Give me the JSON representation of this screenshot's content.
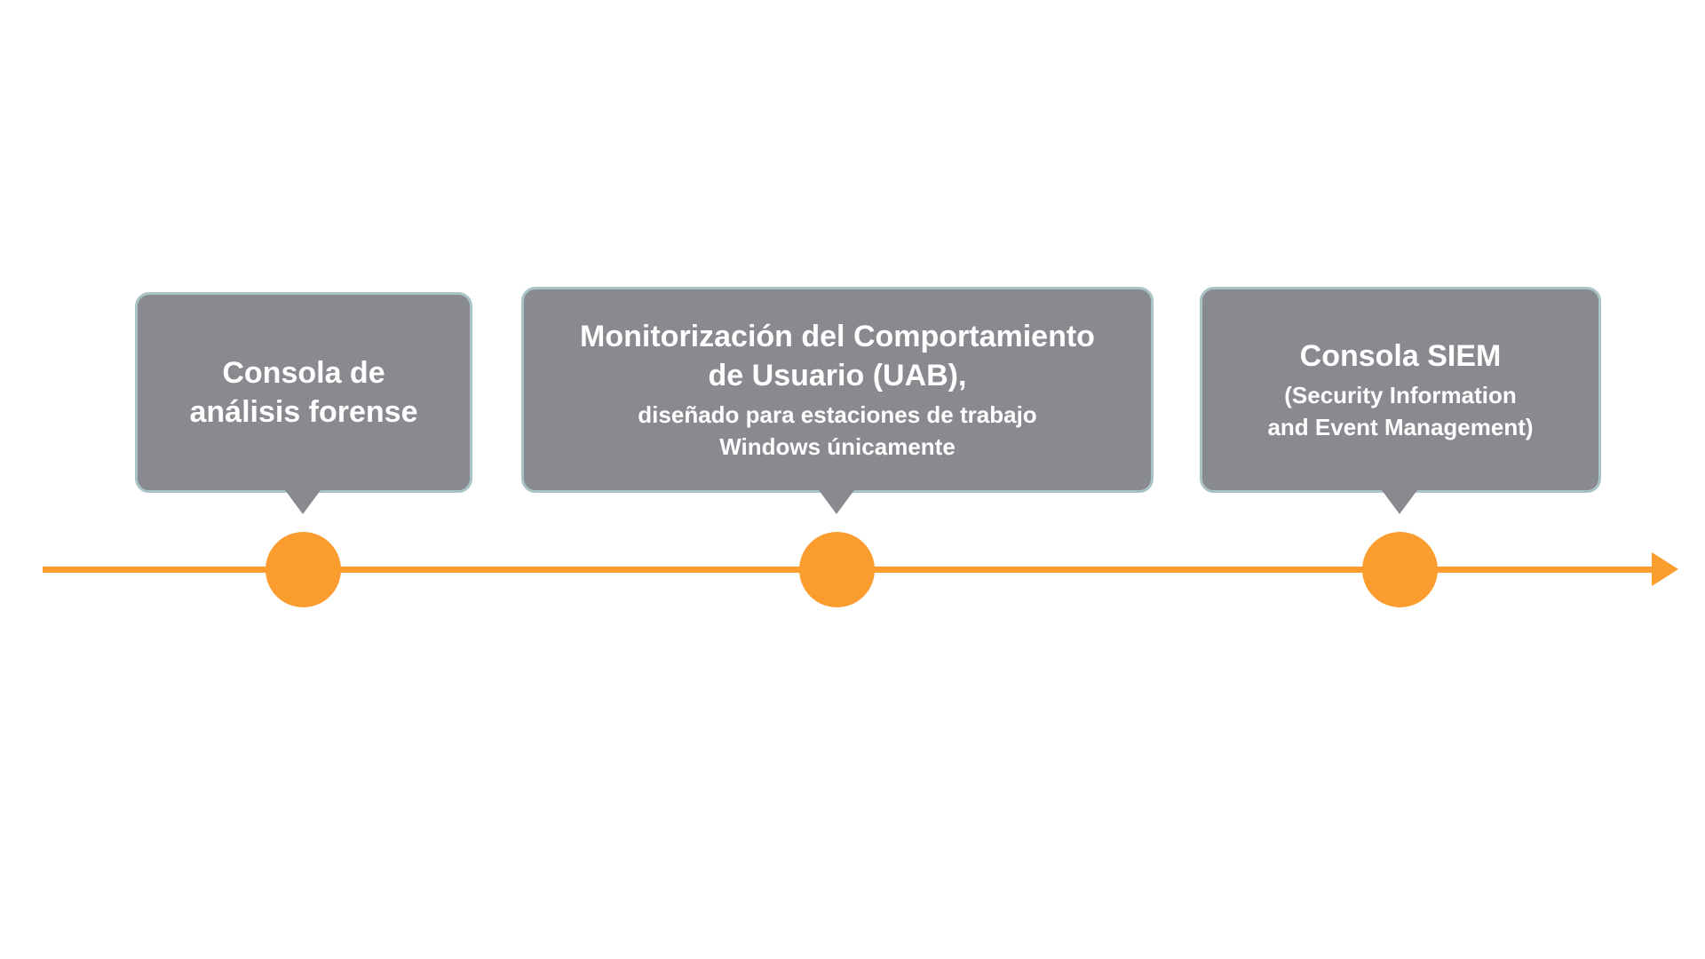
{
  "timeline": {
    "accent_color": "#fb9c2e",
    "callout_color": "#888a90",
    "callout_border_color": "#a9c2c6",
    "milestones": [
      {
        "title_lines": [
          "Consola de",
          "análisis forense"
        ],
        "subtitle_lines": []
      },
      {
        "title_lines": [
          "Monitorización del Comportamiento",
          "de Usuario (UAB),"
        ],
        "subtitle_lines": [
          "diseñado para estaciones de trabajo",
          "Windows únicamente"
        ]
      },
      {
        "title_lines": [
          "Consola SIEM"
        ],
        "subtitle_lines": [
          "(Security Information",
          "and Event Management)"
        ]
      }
    ]
  }
}
